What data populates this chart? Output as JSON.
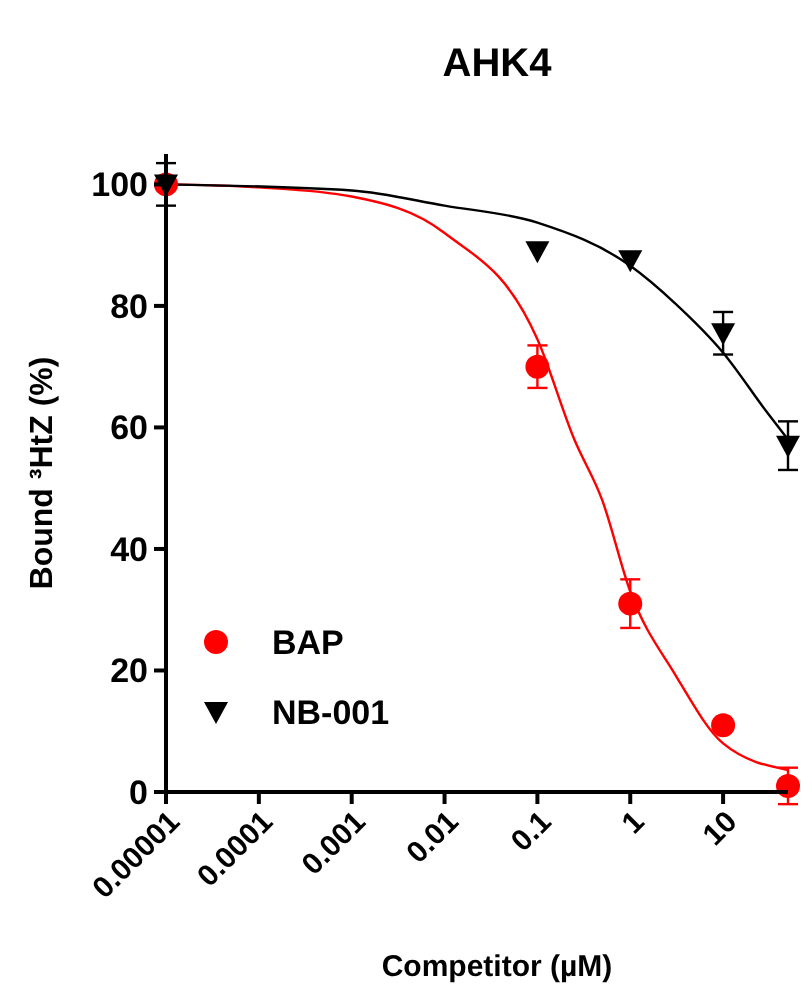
{
  "chart_data": {
    "type": "scatter",
    "title": "AHK4",
    "xlabel": "Competitor (µM)",
    "ylabel": "Bound ³HtZ (%)",
    "log": "x",
    "xlim": [
      1e-05,
      50
    ],
    "xticks": [
      {
        "value": 1e-05,
        "label": "0.00001"
      },
      {
        "value": 0.0001,
        "label": "0.0001"
      },
      {
        "value": 0.001,
        "label": "0.001"
      },
      {
        "value": 0.01,
        "label": "0.01"
      },
      {
        "value": 0.1,
        "label": "0.1"
      },
      {
        "value": 1,
        "label": "1"
      },
      {
        "value": 10,
        "label": "10"
      }
    ],
    "ylim": [
      0,
      105
    ],
    "yticks": [
      0,
      20,
      40,
      60,
      80,
      100
    ],
    "grid": false,
    "legend": "bottom left",
    "series": [
      {
        "type": "line",
        "color": "#ff0000",
        "marker": "none",
        "x": [
          1e-05,
          0.0001,
          0.001,
          0.01,
          0.1,
          0.25,
          0.5,
          1,
          3,
          10,
          50
        ],
        "values": [
          100,
          99.5,
          98,
          92,
          74.5,
          58,
          48,
          33,
          19.5,
          8,
          3.6
        ]
      },
      {
        "type": "line",
        "color": "#000000",
        "marker": "none",
        "x": [
          1e-05,
          0.001,
          0.01,
          0.1,
          1,
          3,
          10,
          30,
          50
        ],
        "values": [
          100,
          99,
          96.5,
          93.7,
          86.6,
          80.5,
          72.3,
          62.4,
          58
        ]
      },
      {
        "name": "BAP",
        "color": "#ff0000",
        "marker": "circle",
        "x": [
          1e-05,
          0.1,
          1,
          10,
          50
        ],
        "values": [
          100,
          70,
          31,
          11,
          1
        ],
        "errors": [
          null,
          3.5,
          4,
          null,
          3
        ]
      },
      {
        "name": "NB-001",
        "color": "#000000",
        "marker": "triangle",
        "x": [
          1e-05,
          0.1,
          1,
          10,
          50
        ],
        "values": [
          100,
          89,
          87.5,
          75.5,
          57
        ],
        "errors": [
          3.5,
          null,
          null,
          3.5,
          4
        ]
      }
    ]
  }
}
